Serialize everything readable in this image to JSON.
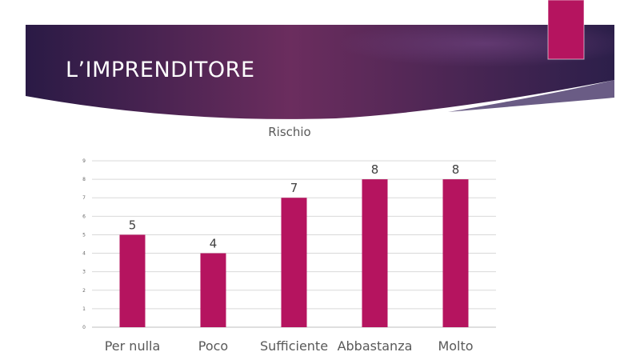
{
  "slide": {
    "title": "L’IMPRENDITORE",
    "accent_color": "#b5145f",
    "banner_colors": [
      "#2a1a45",
      "#6b2d5e",
      "#3b2352"
    ]
  },
  "chart_data": {
    "type": "bar",
    "title": "Rischio",
    "categories": [
      "Per nulla",
      "Poco",
      "Sufficiente",
      "Abbastanza",
      "Molto"
    ],
    "values": [
      5,
      4,
      7,
      8,
      8
    ],
    "data_labels": true,
    "ylim": [
      0,
      9
    ],
    "yticks": [
      0,
      1,
      2,
      3,
      4,
      5,
      6,
      7,
      8,
      9
    ],
    "grid": true,
    "legend": "none",
    "bar_color": "#b5145f",
    "xlabel": "",
    "ylabel": ""
  }
}
